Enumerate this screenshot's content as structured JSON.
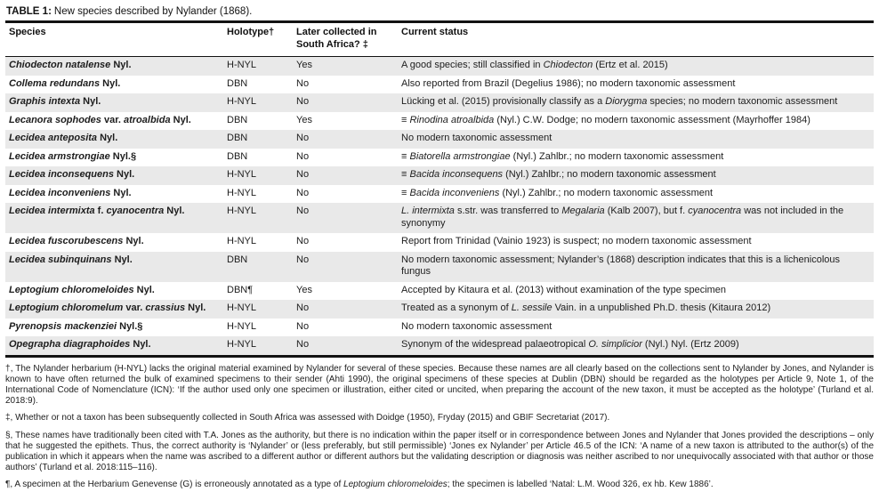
{
  "colors": {
    "row_stripe": "#e9e9e9",
    "rule": "#121212",
    "text": "#1d1d1d"
  },
  "table": {
    "title_label": "TABLE 1:",
    "title_text": "New species described by Nylander (1868).",
    "columns": [
      "Species",
      "Holotype†",
      "Later collected in South Africa? ‡",
      "Current status"
    ],
    "rows": [
      {
        "species": "*Chiodecton natalense* Nyl.",
        "holotype": "H-NYL",
        "later_sa": "Yes",
        "status": "A good species; still classified in *Chiodecton* (Ertz et al. 2015)"
      },
      {
        "species": "*Collema redundans* Nyl.",
        "holotype": "DBN",
        "later_sa": "No",
        "status": "Also reported from Brazil (Degelius 1986); no modern taxonomic assessment"
      },
      {
        "species": "*Graphis intexta* Nyl.",
        "holotype": "H-NYL",
        "later_sa": "No",
        "status": "Lücking et al. (2015) provisionally classify as a *Diorygma* species; no modern taxonomic assessment"
      },
      {
        "species": "*Lecanora sophodes* var. *atroalbida* Nyl.",
        "holotype": "DBN",
        "later_sa": "Yes",
        "status": "≡ *Rinodina atroalbida* (Nyl.) C.W. Dodge; no modern taxonomic assessment (Mayrhoffer 1984)"
      },
      {
        "species": "*Lecidea anteposita* Nyl.",
        "holotype": "DBN",
        "later_sa": "No",
        "status": "No modern taxonomic assessment"
      },
      {
        "species": "*Lecidea armstrongiae* Nyl.§",
        "holotype": "DBN",
        "later_sa": "No",
        "status": "≡ *Biatorella armstrongiae* (Nyl.) Zahlbr.; no modern taxonomic assessment"
      },
      {
        "species": "*Lecidea inconsequens* Nyl.",
        "holotype": "H-NYL",
        "later_sa": "No",
        "status": "≡ *Bacida inconsequens* (Nyl.) Zahlbr.; no modern taxonomic assessment"
      },
      {
        "species": "*Lecidea inconveniens* Nyl.",
        "holotype": "H-NYL",
        "later_sa": "No",
        "status": "≡ *Bacida inconveniens* (Nyl.) Zahlbr.; no modern taxonomic assessment"
      },
      {
        "species": "*Lecidea intermixta* f. *cyanocentra* Nyl.",
        "holotype": "H-NYL",
        "later_sa": "No",
        "status": "*L. intermixta* s.str. was transferred to *Megalaria* (Kalb 2007), but f. *cyanocentra* was not included in the synonymy"
      },
      {
        "species": "*Lecidea fuscorubescens* Nyl.",
        "holotype": "H-NYL",
        "later_sa": "No",
        "status": "Report from Trinidad (Vainio 1923) is suspect; no modern taxonomic assessment"
      },
      {
        "species": "*Lecidea subinquinans* Nyl.",
        "holotype": "DBN",
        "later_sa": "No",
        "status": "No modern taxonomic assessment; Nylander’s (1868) description indicates that this is a lichenicolous fungus"
      },
      {
        "species": "*Leptogium chloromeloides* Nyl.",
        "holotype": "DBN¶",
        "later_sa": "Yes",
        "status": "Accepted by Kitaura et al. (2013) without examination of the type specimen"
      },
      {
        "species": "*Leptogium chloromelum* var. *crassius* Nyl.",
        "holotype": "H-NYL",
        "later_sa": "No",
        "status": "Treated as a synonym of *L. sessile* Vain. in a unpublished Ph.D. thesis (Kitaura 2012)"
      },
      {
        "species": "*Pyrenopsis mackenziei* Nyl.§",
        "holotype": "H-NYL",
        "later_sa": "No",
        "status": "No modern taxonomic assessment"
      },
      {
        "species": "*Opegrapha diagraphoides* Nyl.",
        "holotype": "H-NYL",
        "later_sa": "No",
        "status": "Synonym of the widespread palaeotropical *O. simplicior* (Nyl.) Nyl. (Ertz 2009)"
      }
    ]
  },
  "footnotes": [
    "†, The Nylander herbarium (H-NYL) lacks the original material examined by Nylander for several of these species. Because these names are all clearly based on the collections sent to Nylander by Jones, and Nylander is known to have often returned the bulk of examined specimens to their sender (Ahti 1990), the original specimens of these species at Dublin (DBN) should be regarded as the holotypes per Article 9, Note 1, of the International Code of Nomenclature (ICN): ‘If the author used only one specimen or illustration, either cited or uncited, when preparing the account of the new taxon, it must be accepted as the holotype’ (Turland et al. 2018:9).",
    "‡, Whether or not a taxon has been subsequently collected in South Africa was assessed with Doidge (1950), Fryday (2015) and GBIF Secretariat (2017).",
    "§, These names have traditionally been cited with T.A. Jones as the authority, but there is no indication within the paper itself or in correspondence between Jones and Nylander that Jones provided the descriptions – only that he suggested the epithets. Thus, the correct authority is ‘Nylander’ or (less preferably, but still permissible) ‘Jones ex Nylander’ per Article 46.5 of the ICN: ‘A name of a new taxon is attributed to the author(s) of the publication in which it appears when the name was ascribed to a different author or different authors but the validating description or diagnosis was neither ascribed to nor unequivocally associated with that author or those authors’ (Turland et al. 2018:115–116).",
    "¶, A specimen at the Herbarium Genevense (G) is erroneously annotated as a type of *Leptogium chloromeloides*; the specimen is labelled ‘Natal: L.M. Wood 326, ex hb. Kew 1886’."
  ]
}
